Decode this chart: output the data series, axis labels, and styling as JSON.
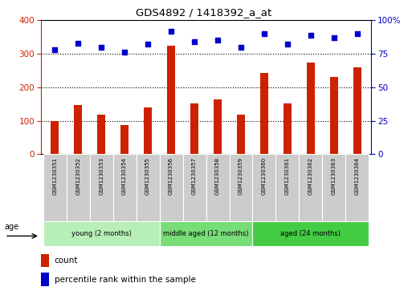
{
  "title": "GDS4892 / 1418392_a_at",
  "samples": [
    "GSM1230351",
    "GSM1230352",
    "GSM1230353",
    "GSM1230354",
    "GSM1230355",
    "GSM1230356",
    "GSM1230357",
    "GSM1230358",
    "GSM1230359",
    "GSM1230360",
    "GSM1230361",
    "GSM1230362",
    "GSM1230363",
    "GSM1230364"
  ],
  "counts": [
    100,
    148,
    118,
    88,
    140,
    325,
    152,
    165,
    118,
    242,
    152,
    275,
    230,
    260
  ],
  "percentiles": [
    78,
    83,
    80,
    76,
    82,
    92,
    84,
    85,
    80,
    90,
    82,
    89,
    87,
    90
  ],
  "bar_color": "#cc2200",
  "dot_color": "#0000cc",
  "left_ylim": [
    0,
    400
  ],
  "right_ylim": [
    0,
    100
  ],
  "left_yticks": [
    0,
    100,
    200,
    300,
    400
  ],
  "right_yticks": [
    0,
    25,
    50,
    75,
    100
  ],
  "right_yticklabels": [
    "0",
    "25",
    "50",
    "75",
    "100%"
  ],
  "groups": [
    {
      "label": "young (2 months)",
      "start": 0,
      "end": 5,
      "color": "#b8eeb8"
    },
    {
      "label": "middle aged (12 months)",
      "start": 5,
      "end": 9,
      "color": "#77dd77"
    },
    {
      "label": "aged (24 months)",
      "start": 9,
      "end": 14,
      "color": "#44cc44"
    }
  ],
  "age_label": "age",
  "legend_count_label": "count",
  "legend_percentile_label": "percentile rank within the sample",
  "axis_color_left": "#cc2200",
  "axis_color_right": "#0000cc",
  "xlabels_bg": "#cccccc",
  "fig_width": 5.08,
  "fig_height": 3.63,
  "dpi": 100
}
